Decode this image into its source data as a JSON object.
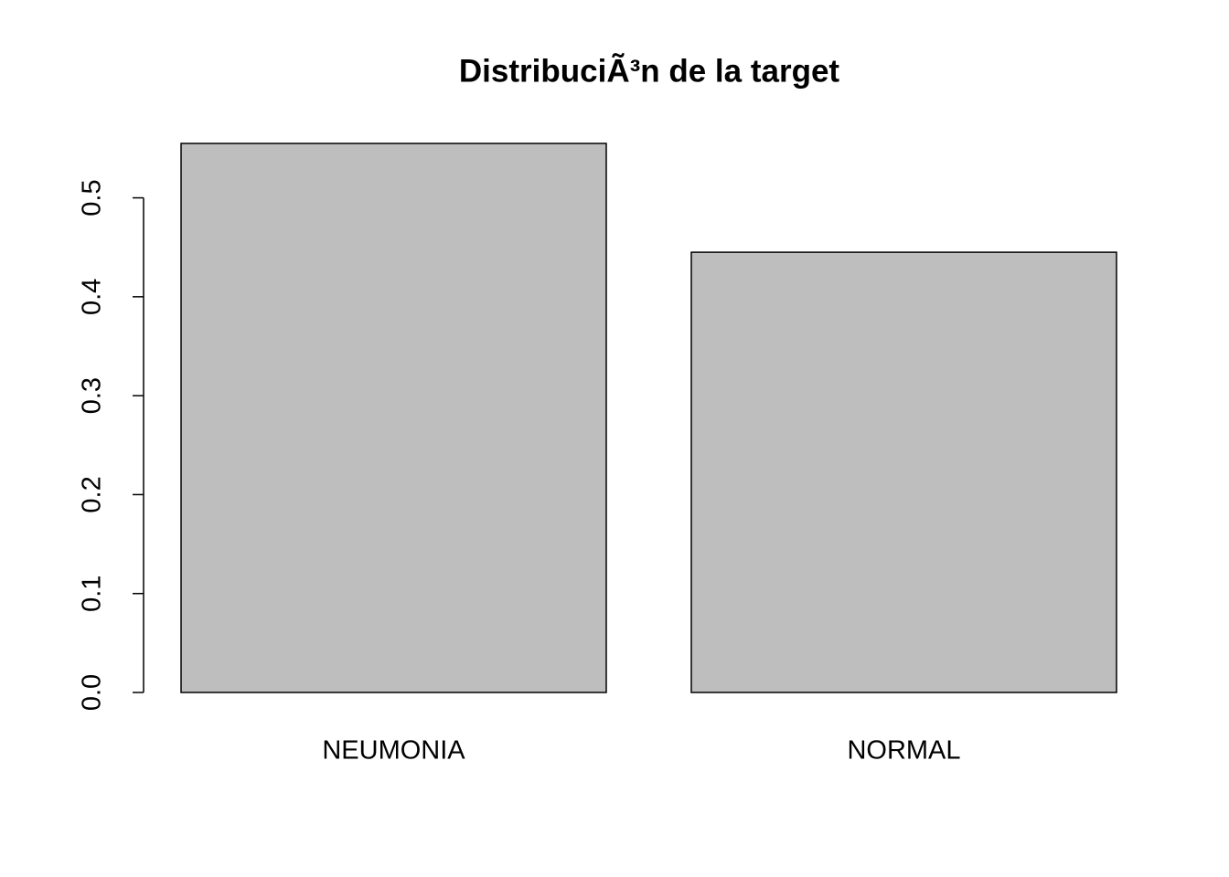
{
  "chart_data": {
    "type": "bar",
    "title": "DistribuciÃ³n de la target",
    "categories": [
      "NEUMONIA",
      "NORMAL"
    ],
    "values": [
      0.555,
      0.445
    ],
    "color": "#bebebe",
    "ylim": [
      0,
      0.555
    ],
    "yticks": [
      0.0,
      0.1,
      0.2,
      0.3,
      0.4,
      0.5
    ]
  }
}
